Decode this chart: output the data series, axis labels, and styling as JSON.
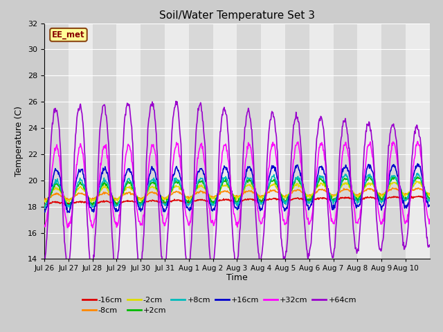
{
  "title": "Soil/Water Temperature Set 3",
  "xlabel": "Time",
  "ylabel": "Temperature (C)",
  "ylim": [
    14,
    32
  ],
  "yticks": [
    14,
    16,
    18,
    20,
    22,
    24,
    26,
    28,
    30,
    32
  ],
  "annotation_text": "EE_met",
  "annotation_bg": "#ffff99",
  "annotation_border": "#8B4513",
  "series_order": [
    "-16cm",
    "-8cm",
    "-2cm",
    "+2cm",
    "+8cm",
    "+16cm",
    "+32cm",
    "+64cm"
  ],
  "series": {
    "-16cm": {
      "color": "#dd0000",
      "lw": 1.2
    },
    "-8cm": {
      "color": "#ff8800",
      "lw": 1.2
    },
    "-2cm": {
      "color": "#dddd00",
      "lw": 1.2
    },
    "+2cm": {
      "color": "#00bb00",
      "lw": 1.2
    },
    "+8cm": {
      "color": "#00bbbb",
      "lw": 1.2
    },
    "+16cm": {
      "color": "#0000cc",
      "lw": 1.2
    },
    "+32cm": {
      "color": "#ff00ff",
      "lw": 1.2
    },
    "+64cm": {
      "color": "#9900cc",
      "lw": 1.2
    }
  },
  "legend_row1": [
    "-16cm",
    "-8cm",
    "-2cm",
    "+2cm",
    "+8cm",
    "+16cm"
  ],
  "legend_row2": [
    "+32cm",
    "+64cm"
  ],
  "xtick_labels": [
    "Jul 26",
    "Jul 27",
    "Jul 28",
    "Jul 29",
    "Jul 30",
    "Jul 31",
    "Aug 1",
    "Aug 2",
    "Aug 3",
    "Aug 4",
    "Aug 5",
    "Aug 6",
    "Aug 7",
    "Aug 8",
    "Aug 9",
    "Aug 10"
  ],
  "n_days": 16,
  "pts_per_day": 48
}
